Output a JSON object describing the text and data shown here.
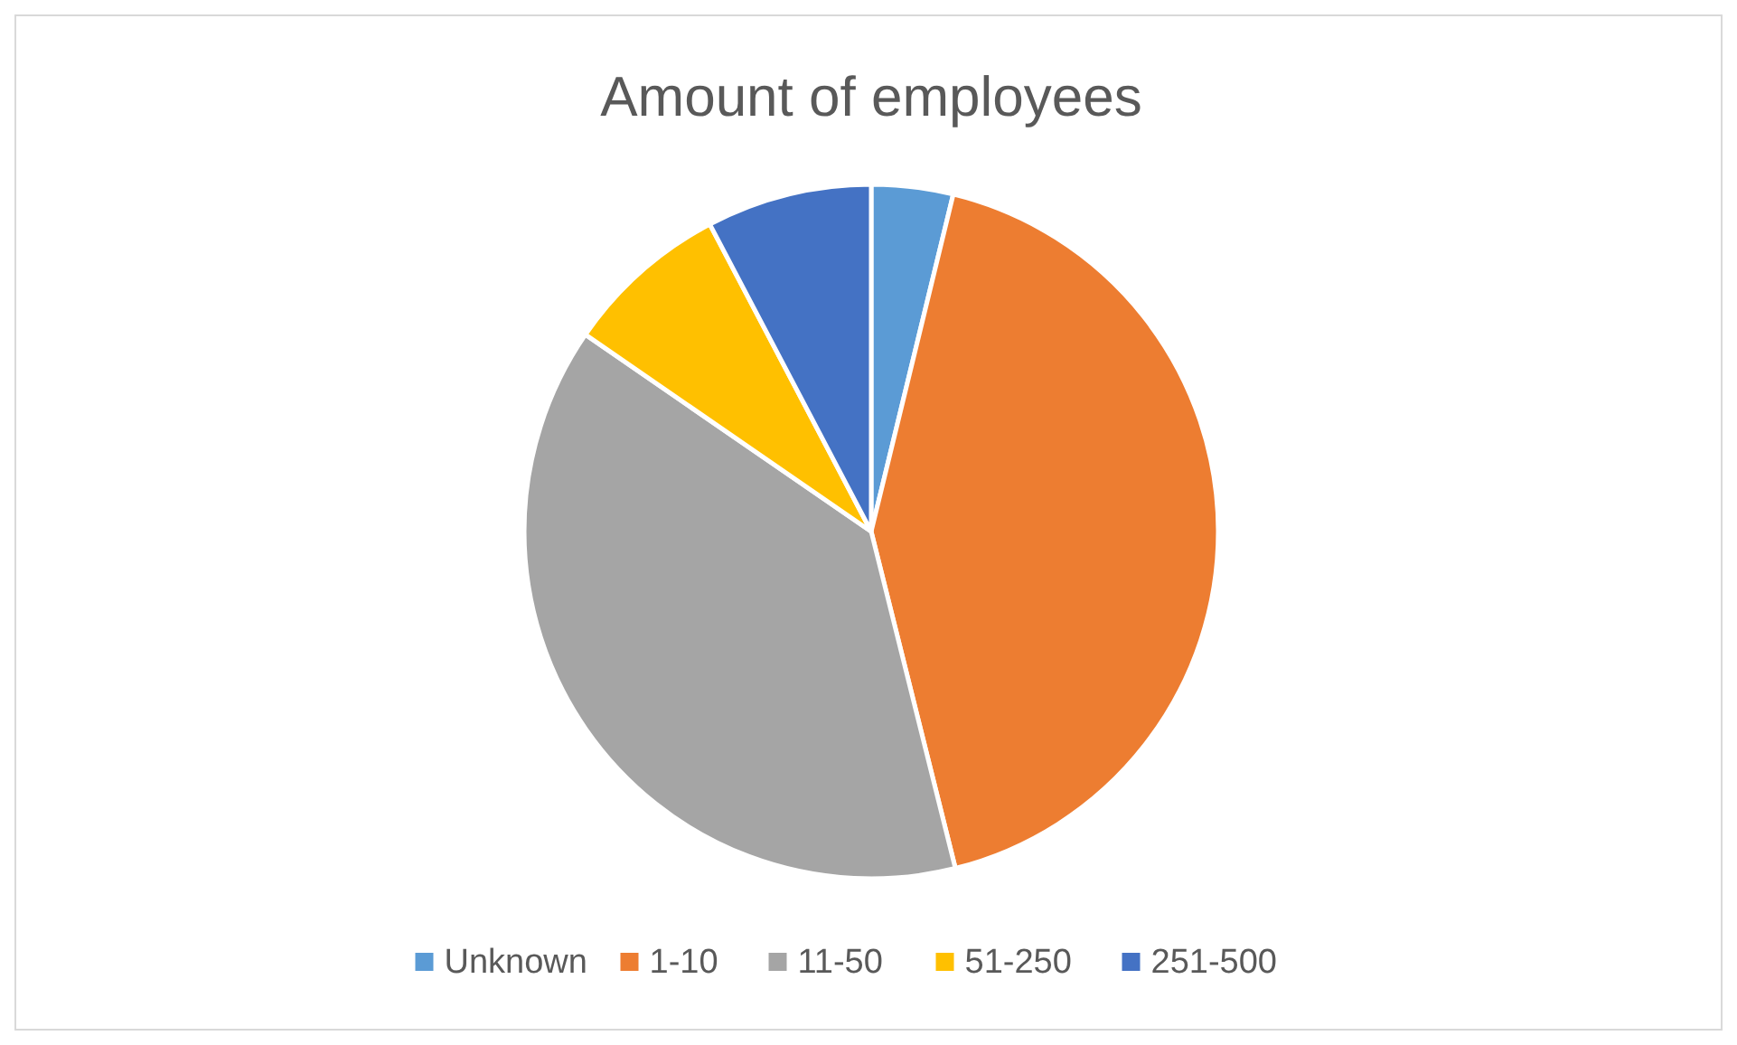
{
  "chart_data": {
    "type": "pie",
    "title": "Amount of employees",
    "categories": [
      "Unknown",
      "1-10",
      "11-50",
      "51-250",
      "251-500"
    ],
    "values": [
      3.8,
      42.3,
      38.5,
      7.7,
      7.7
    ],
    "colors": [
      "#5b9bd5",
      "#ed7d31",
      "#a5a5a5",
      "#ffc000",
      "#4472c4"
    ],
    "legend": "bottom"
  }
}
